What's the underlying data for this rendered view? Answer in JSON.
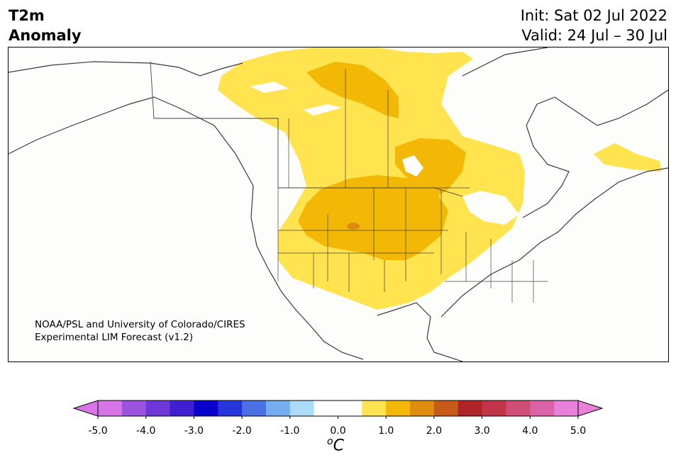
{
  "header": {
    "title_line1": "T2m",
    "title_line2": "Anomaly",
    "init": "Init: Sat 02 Jul 2022",
    "valid": "Valid: 24 Jul – 30 Jul"
  },
  "credit": {
    "line1": "NOAA/PSL and University of Colorado/CIRES",
    "line2": "Experimental LIM Forecast (v1.2)"
  },
  "colorbar": {
    "unit_base": "C",
    "unit_sup": "o",
    "ticks": [
      "-5.0",
      "-4.0",
      "-3.0",
      "-2.0",
      "-1.0",
      "0.0",
      "1.0",
      "2.0",
      "3.0",
      "4.0",
      "5.0"
    ],
    "colors": [
      "#d674e8",
      "#9b52dc",
      "#6d37d9",
      "#3e1fd2",
      "#0a00cc",
      "#2536db",
      "#4a70e4",
      "#74aef0",
      "#acdcfa",
      "#ffffff",
      "#ffffff",
      "#ffe34f",
      "#f2b805",
      "#de8b0e",
      "#c75a17",
      "#ae2427",
      "#c23448",
      "#cf4e78",
      "#dc62a8",
      "#e87fd8"
    ],
    "extend_low": "#d674e8",
    "extend_high": "#e87fd8"
  },
  "map_colors": {
    "anom_0_5": "#ffe34f",
    "anom_1_0": "#f2b805",
    "anom_2_0": "#de8b0e",
    "background": "#fdfdfb",
    "coast": "#3a3a3a"
  }
}
